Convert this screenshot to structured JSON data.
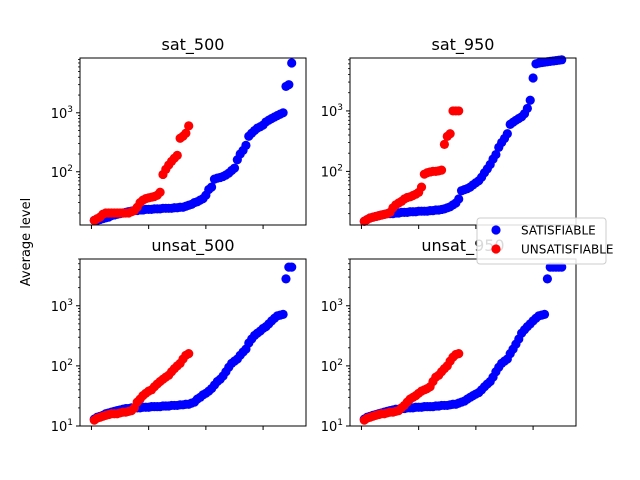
{
  "chart_data": {
    "type": "scatter",
    "ylabel": "Average level",
    "yscale": "log",
    "legend": {
      "placement": "right",
      "entries": [
        {
          "label": "SATISFIABLE",
          "color": "#0000ff"
        },
        {
          "label": "UNSATISFIABLE",
          "color": "#ff0000"
        }
      ]
    },
    "panels": [
      {
        "title": "sat_500",
        "ylim": [
          12.5,
          8500
        ],
        "yticks": [
          {
            "value": 100,
            "base": "10",
            "exp": "2"
          },
          {
            "value": 1000,
            "base": "10",
            "exp": "3"
          }
        ],
        "series": [
          {
            "name": "SATISFIABLE",
            "color": "#0000ff",
            "x": [
              1,
              2,
              3,
              4,
              5,
              6,
              7,
              8,
              9,
              10,
              11,
              12,
              13,
              14,
              15,
              16,
              17,
              18,
              19,
              20,
              21,
              22,
              23,
              24,
              25,
              26,
              27,
              28,
              29,
              30,
              31,
              32,
              33,
              34,
              35,
              36,
              37,
              38,
              39,
              40,
              41,
              42,
              43,
              44,
              45,
              46,
              47,
              48,
              49,
              50,
              51,
              52,
              53,
              54,
              55,
              56,
              57,
              58,
              59,
              60,
              61,
              62,
              63,
              64,
              65,
              66,
              67,
              68,
              69,
              70
            ],
            "y": [
              15,
              15,
              15.5,
              16,
              16.5,
              17,
              18,
              18.5,
              19,
              19.5,
              20,
              20.5,
              21,
              21.5,
              22,
              22,
              22.5,
              22.5,
              23,
              23,
              23,
              23.5,
              23.5,
              23.5,
              24,
              24,
              24,
              24,
              24.5,
              24.5,
              25,
              25,
              26,
              27,
              28,
              30,
              31,
              33,
              35,
              40,
              50,
              55,
              75,
              78,
              80,
              83,
              88,
              95,
              105,
              115,
              160,
              200,
              230,
              280,
              400,
              450,
              500,
              550,
              580,
              620,
              700,
              750,
              800,
              850,
              900,
              950,
              1000,
              2800,
              3000,
              7000
            ]
          },
          {
            "name": "UNSATISFIABLE",
            "color": "#ff0000",
            "x": [
              1,
              2,
              3,
              4,
              5,
              6,
              7,
              8,
              9,
              10,
              11,
              12,
              13,
              14,
              15,
              16,
              17,
              18,
              19,
              20,
              21,
              22,
              23,
              24,
              25,
              26,
              27,
              28,
              29,
              30,
              31,
              32,
              33,
              34
            ],
            "y": [
              15,
              16,
              17,
              19,
              20,
              20,
              20,
              20,
              20,
              20,
              20,
              20,
              20,
              21,
              22,
              25,
              30,
              33,
              35,
              36,
              37,
              38,
              40,
              45,
              90,
              110,
              130,
              150,
              170,
              190,
              370,
              400,
              450,
              600
            ]
          }
        ]
      },
      {
        "title": "sat_950",
        "ylim": [
          13,
          7500
        ],
        "yticks": [
          {
            "value": 100,
            "base": "10",
            "exp": "2"
          },
          {
            "value": 1000,
            "base": "10",
            "exp": "3"
          }
        ],
        "series": [
          {
            "name": "SATISFIABLE",
            "color": "#0000ff",
            "x": [
              1,
              2,
              3,
              4,
              5,
              6,
              7,
              8,
              9,
              10,
              11,
              12,
              13,
              14,
              15,
              16,
              17,
              18,
              19,
              20,
              21,
              22,
              23,
              24,
              25,
              26,
              27,
              28,
              29,
              30,
              31,
              32,
              33,
              34,
              35,
              36,
              37,
              38,
              39,
              40,
              41,
              42,
              43,
              44,
              45,
              46,
              47,
              48,
              49,
              50,
              51,
              52,
              53,
              54,
              55,
              56,
              57,
              58,
              59,
              60,
              61,
              62,
              63,
              64,
              65,
              66,
              67,
              68,
              69,
              70
            ],
            "y": [
              15,
              16,
              17,
              17.5,
              18,
              18.5,
              19,
              19.5,
              20,
              20,
              20,
              20.5,
              20.5,
              21,
              21,
              21,
              21.5,
              21.5,
              21.5,
              22,
              22,
              22,
              22,
              22.5,
              22.5,
              23,
              23,
              23.5,
              24,
              25,
              26,
              28,
              30,
              35,
              48,
              50,
              52,
              55,
              60,
              65,
              70,
              80,
              95,
              110,
              130,
              160,
              190,
              250,
              300,
              350,
              420,
              600,
              650,
              700,
              750,
              800,
              900,
              1100,
              1500,
              3500,
              6000,
              6200,
              6300,
              6400,
              6500,
              6600,
              6700,
              6800,
              6900,
              7000
            ]
          },
          {
            "name": "UNSATISFIABLE",
            "color": "#ff0000",
            "x": [
              1,
              2,
              3,
              4,
              5,
              6,
              7,
              8,
              9,
              10,
              11,
              12,
              13,
              14,
              15,
              16,
              17,
              18,
              19,
              20,
              21,
              22,
              23,
              24,
              25,
              26,
              27,
              28,
              29,
              30,
              31,
              32,
              33,
              34
            ],
            "y": [
              15,
              16,
              17,
              17.5,
              18,
              18.5,
              19,
              19.5,
              20,
              21,
              25,
              28,
              30,
              32,
              35,
              37,
              38,
              40,
              42,
              45,
              55,
              90,
              95,
              98,
              100,
              100,
              102,
              105,
              280,
              380,
              420,
              1000,
              1000,
              1000
            ]
          }
        ]
      },
      {
        "title": "unsat_500",
        "ylim": [
          10,
          6000
        ],
        "yticks": [
          {
            "value": 10,
            "base": "10",
            "exp": "1"
          },
          {
            "value": 100,
            "base": "10",
            "exp": "2"
          },
          {
            "value": 1000,
            "base": "10",
            "exp": "3"
          }
        ],
        "series": [
          {
            "name": "SATISFIABLE",
            "color": "#0000ff",
            "x": [
              1,
              2,
              3,
              4,
              5,
              6,
              7,
              8,
              9,
              10,
              11,
              12,
              13,
              14,
              15,
              16,
              17,
              18,
              19,
              20,
              21,
              22,
              23,
              24,
              25,
              26,
              27,
              28,
              29,
              30,
              31,
              32,
              33,
              34,
              35,
              36,
              37,
              38,
              39,
              40,
              41,
              42,
              43,
              44,
              45,
              46,
              47,
              48,
              49,
              50,
              51,
              52,
              53,
              54,
              55,
              56,
              57,
              58,
              59,
              60,
              61,
              62,
              63,
              64,
              65,
              66,
              67,
              68,
              69,
              70
            ],
            "y": [
              13,
              14,
              14.5,
              15,
              16,
              16.5,
              17,
              17.5,
              18,
              18.5,
              19,
              19.5,
              19.5,
              20,
              20,
              20,
              20,
              20.5,
              20.5,
              20.5,
              21,
              21,
              21,
              21,
              21.5,
              21.5,
              21.5,
              22,
              22,
              22,
              22.5,
              22.5,
              23,
              23,
              24,
              25,
              28,
              30,
              33,
              35,
              38,
              42,
              48,
              55,
              60,
              68,
              80,
              95,
              110,
              120,
              130,
              150,
              170,
              190,
              240,
              280,
              320,
              350,
              380,
              420,
              450,
              500,
              560,
              620,
              680,
              700,
              720,
              2800,
              4400,
              4400
            ]
          },
          {
            "name": "UNSATISFIABLE",
            "color": "#ff0000",
            "x": [
              1,
              2,
              3,
              4,
              5,
              6,
              7,
              8,
              9,
              10,
              11,
              12,
              13,
              14,
              15,
              16,
              17,
              18,
              19,
              20,
              21,
              22,
              23,
              24,
              25,
              26,
              27,
              28,
              29,
              30,
              31,
              32,
              33,
              34
            ],
            "y": [
              12.5,
              13.5,
              14,
              14.5,
              15,
              15.5,
              16,
              16,
              16,
              16.5,
              17,
              17,
              17.5,
              18,
              20,
              25,
              28,
              32,
              35,
              38,
              40,
              45,
              50,
              55,
              60,
              65,
              70,
              80,
              90,
              100,
              110,
              130,
              150,
              160
            ]
          }
        ]
      },
      {
        "title": "unsat_950",
        "ylim": [
          10,
          6000
        ],
        "yticks": [
          {
            "value": 10,
            "base": "10",
            "exp": "1"
          },
          {
            "value": 100,
            "base": "10",
            "exp": "2"
          },
          {
            "value": 1000,
            "base": "10",
            "exp": "3"
          }
        ],
        "series": [
          {
            "name": "SATISFIABLE",
            "color": "#0000ff",
            "x": [
              1,
              2,
              3,
              4,
              5,
              6,
              7,
              8,
              9,
              10,
              11,
              12,
              13,
              14,
              15,
              16,
              17,
              18,
              19,
              20,
              21,
              22,
              23,
              24,
              25,
              26,
              27,
              28,
              29,
              30,
              31,
              32,
              33,
              34,
              35,
              36,
              37,
              38,
              39,
              40,
              41,
              42,
              43,
              44,
              45,
              46,
              47,
              48,
              49,
              50,
              51,
              52,
              53,
              54,
              55,
              56,
              57,
              58,
              59,
              60,
              61,
              62,
              63,
              64,
              65,
              66,
              67,
              68,
              69,
              70
            ],
            "y": [
              13,
              14,
              14.5,
              15,
              15.5,
              16,
              16.5,
              17,
              17.5,
              18,
              18.5,
              19,
              19,
              19.5,
              19.5,
              20,
              20,
              20,
              20.5,
              20.5,
              20.5,
              21,
              21,
              21,
              21,
              21.5,
              21.5,
              22,
              22,
              22,
              22.5,
              23,
              23,
              24,
              25,
              26,
              28,
              30,
              32,
              34,
              36,
              40,
              45,
              50,
              55,
              65,
              80,
              95,
              110,
              120,
              130,
              160,
              190,
              230,
              280,
              350,
              400,
              450,
              500,
              560,
              620,
              680,
              700,
              720,
              2800,
              4400,
              4400,
              4400,
              4400,
              4400
            ]
          },
          {
            "name": "UNSATISFIABLE",
            "color": "#ff0000",
            "x": [
              1,
              2,
              3,
              4,
              5,
              6,
              7,
              8,
              9,
              10,
              11,
              12,
              13,
              14,
              15,
              16,
              17,
              18,
              19,
              20,
              21,
              22,
              23,
              24,
              25,
              26,
              27,
              28,
              29,
              30,
              31,
              32,
              33,
              34
            ],
            "y": [
              12.5,
              13.5,
              14,
              14.5,
              15,
              15.5,
              16,
              16,
              16.5,
              17,
              17,
              17.5,
              18,
              20,
              22,
              25,
              28,
              30,
              32,
              35,
              38,
              40,
              42,
              45,
              55,
              65,
              70,
              80,
              90,
              100,
              120,
              140,
              155,
              160
            ]
          }
        ]
      }
    ]
  }
}
